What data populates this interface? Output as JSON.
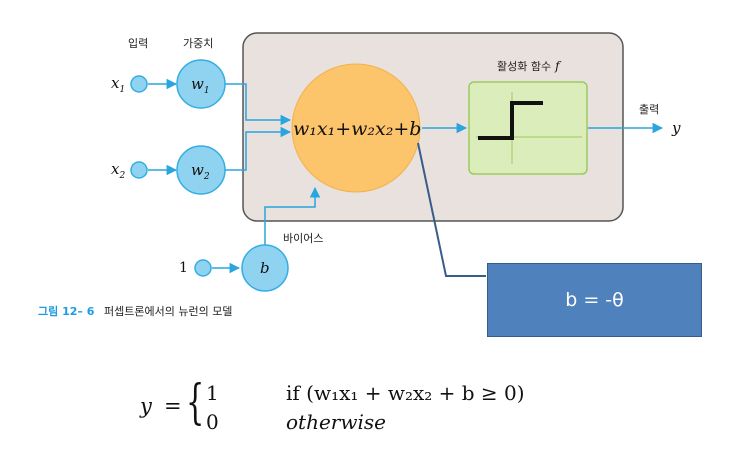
{
  "diagram": {
    "label_input": "입력",
    "label_weight": "가중치",
    "label_activation": "활성화 함수",
    "label_activation_f": "f",
    "label_output": "출력",
    "label_bias": "바이어스",
    "x1_var": "x",
    "x1_sub": "1",
    "x2_var": "x",
    "x2_sub": "2",
    "w1_var": "w",
    "w1_sub": "1",
    "w2_var": "w",
    "w2_sub": "2",
    "bias_input": "1",
    "bias_var": "b",
    "output_var": "y",
    "sum_expression": "w₁x₁+w₂x₂+b",
    "caption_number": "그림 12– 6",
    "caption_text": "퍼셉트론에서의 뉴런의 모델"
  },
  "callout": {
    "text": "b = -θ"
  },
  "formula": {
    "lhs": "y",
    "eq": "=",
    "case1_value": "1",
    "case1_condition": "if (w₁x₁ + w₂x₂ + b ≥ 0)",
    "case2_value": "0",
    "case2_condition": "otherwise"
  },
  "colors": {
    "node_fill": "#8fd3f0",
    "node_stroke": "#33aee3",
    "arrow": "#29a6df",
    "sum_fill": "#fcc46b",
    "activation_fill": "#dcedbc",
    "activation_stroke": "#9ccb5c",
    "neuron_box_fill": "#e9e1dd",
    "neuron_box_stroke": "#555555",
    "callout_fill": "#4f81bd",
    "connector_line": "#385d8a"
  }
}
